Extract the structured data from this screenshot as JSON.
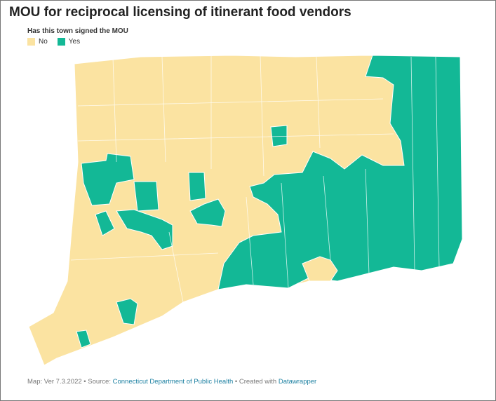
{
  "header": {
    "title": "MOU for reciprocal licensing of itinerant food vendors",
    "legend_title": "Has this town signed the MOU"
  },
  "legend": [
    {
      "label": "No",
      "color": "#fbe3a1"
    },
    {
      "label": "Yes",
      "color": "#13b896"
    }
  ],
  "footer": {
    "prefix": "Map: Ver 7.3.2022 • Source: ",
    "source": "Connecticut Department of Public Health",
    "middle": " • Created with ",
    "tool": "Datawrapper"
  }
}
